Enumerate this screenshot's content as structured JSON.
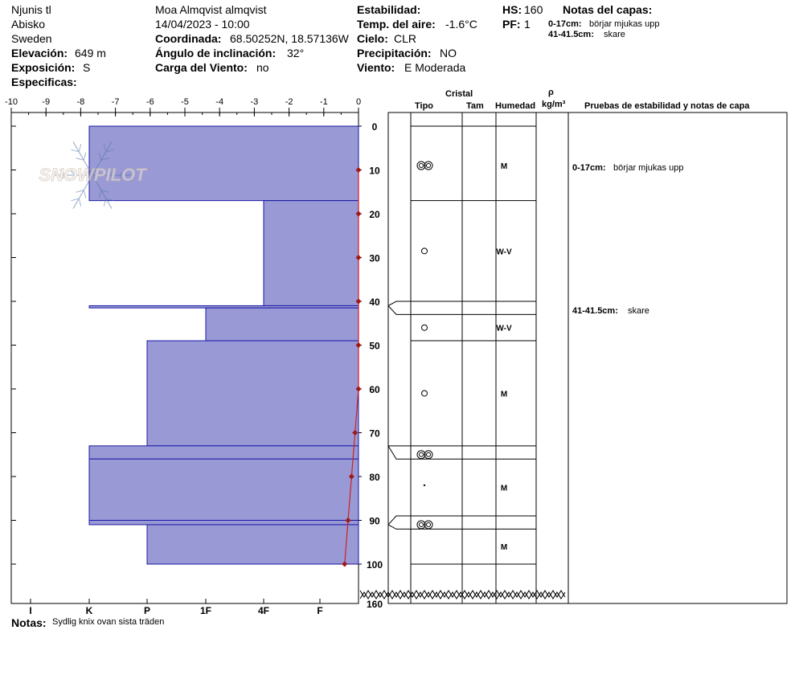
{
  "header": {
    "location": "Njunis tl",
    "region": "Abisko",
    "country": "Sweden",
    "elevation_label": "Elevación:",
    "elevation": "649 m",
    "aspect_label": "Exposición:",
    "aspect": "S",
    "specifics_label": "Especificas:",
    "observer": "Moa Almqvist almqvist",
    "datetime": "14/04/2023 - 10:00",
    "coord_label": "Coordinada:",
    "coord": "68.50252N, 18.57136W",
    "slope_label": "Ángulo de inclinación:",
    "slope": "32°",
    "windload_label": "Carga del Viento:",
    "windload": "no",
    "stability_label": "Estabilidad:",
    "stability": "",
    "airtemp_label": "Temp. del aire:",
    "airtemp": "-1.6°C",
    "sky_label": "Cielo:",
    "sky": "CLR",
    "precip_label": "Precipitación:",
    "precip": "NO",
    "wind_label": "Viento:",
    "wind": "E Moderada",
    "hs_label": "HS:",
    "hs": "160",
    "pf_label": "PF:",
    "pf": "1",
    "layer_notes_title": "Notas del capas:",
    "layer_notes": [
      {
        "range": "0-17cm:",
        "text": "börjar mjukas upp"
      },
      {
        "range": "41-41.5cm:",
        "text": "skare"
      }
    ]
  },
  "columns": {
    "cristal": "Cristal",
    "tipo": "Tipo",
    "tam": "Tam",
    "humedad": "Humedad",
    "rho": "ρ",
    "density_unit": "kg/m³",
    "tests": "Pruebas de estabilidad y notas de capa"
  },
  "notes_label": "Notas:",
  "notes": "Sydlig knix ovan sista träden",
  "logo_text": "SNOWPILOT",
  "colors": {
    "layer_fill": "#9999d6",
    "layer_stroke": "#1a1aa6",
    "temp_line": "#cc2222",
    "temp_marker": "#a01818"
  },
  "chart_data": {
    "type": "snow-profile",
    "temp_axis": {
      "ticks": [
        -10,
        -9,
        -8,
        -7,
        -6,
        -5,
        -4,
        -3,
        -2,
        -1,
        0
      ],
      "range": [
        -10,
        0
      ]
    },
    "hardness_axis": {
      "ticks": [
        "I",
        "K",
        "P",
        "1F",
        "4F",
        "F"
      ]
    },
    "depth_axis": {
      "ticks": [
        0,
        10,
        20,
        30,
        40,
        50,
        60,
        70,
        80,
        90,
        100
      ],
      "max_label": "160",
      "range": [
        0,
        100
      ]
    },
    "layers": [
      {
        "top": 0,
        "bottom": 17,
        "hardness": "K",
        "grain": "melt-cluster",
        "moisture": "M"
      },
      {
        "top": 17,
        "bottom": 41,
        "hardness": "1F+",
        "grain": "rounded",
        "moisture": "W-V"
      },
      {
        "top": 41,
        "bottom": 41.5,
        "hardness": "K",
        "grain": "crust",
        "moisture": ""
      },
      {
        "top": 41.5,
        "bottom": 49,
        "hardness": "4F+",
        "grain": "rounded",
        "moisture": "W-V"
      },
      {
        "top": 49,
        "bottom": 73,
        "hardness": "P",
        "grain": "rounded",
        "moisture": "M"
      },
      {
        "top": 73,
        "bottom": 76,
        "hardness": "K",
        "grain": "melt-cluster",
        "moisture": ""
      },
      {
        "top": 76,
        "bottom": 90,
        "hardness": "K",
        "grain": "small-particle",
        "moisture": "M"
      },
      {
        "top": 90,
        "bottom": 91,
        "hardness": "K",
        "grain": "melt-cluster",
        "moisture": ""
      },
      {
        "top": 91,
        "bottom": 100,
        "hardness": "P",
        "grain": "none",
        "moisture": "M"
      }
    ],
    "temperature": {
      "depth": [
        10,
        20,
        30,
        40,
        50,
        60,
        70,
        80,
        90,
        100
      ],
      "temp": [
        0,
        0,
        0,
        0,
        0,
        0,
        -0.1,
        -0.2,
        -0.3,
        -0.4
      ]
    }
  }
}
